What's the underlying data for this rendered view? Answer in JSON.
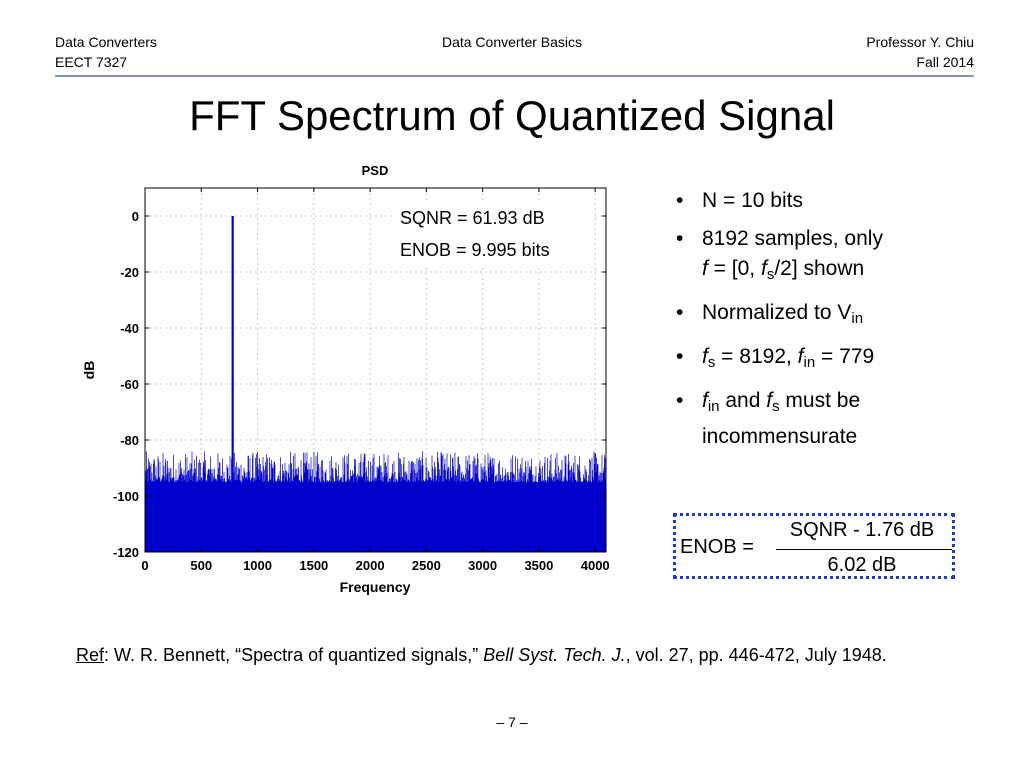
{
  "header": {
    "left_line1": "Data Converters",
    "left_line2": "EECT 7327",
    "center": "Data Converter Basics",
    "right_line1": "Professor Y. Chiu",
    "right_line2": "Fall 2014"
  },
  "title": "FFT Spectrum of Quantized Signal",
  "chart_data": {
    "type": "line",
    "title": "PSD",
    "xlabel": "Frequency",
    "ylabel": "dB",
    "xlim": [
      0,
      4096
    ],
    "ylim": [
      -120,
      10
    ],
    "xticks": [
      0,
      500,
      1000,
      1500,
      2000,
      2500,
      3000,
      3500,
      4000
    ],
    "yticks": [
      0,
      -20,
      -40,
      -60,
      -80,
      -100,
      -120
    ],
    "grid": true,
    "series_color": "#0000cc",
    "noise_floor_db": [
      -95,
      -84
    ],
    "signal_peak": {
      "x": 779,
      "y": 0
    },
    "annotations": [
      "SQNR = 61.93 dB",
      "ENOB = 9.995 bits"
    ]
  },
  "bullets": [
    {
      "text": "N = 10 bits"
    },
    {
      "a": "8192 samples, only",
      "b_f": "f",
      "b_mid": " = [0, ",
      "b_fs": "f",
      "b_s": "s",
      "b_end": "/2] shown"
    },
    {
      "a": "Normalized to V",
      "sub": "in"
    },
    {
      "f1": "f",
      "s1": "s",
      "m1": " = 8192, ",
      "f2": "f",
      "s2": "in",
      "m2": " = 779"
    },
    {
      "f1": "f",
      "s1": "in",
      "m1": " and ",
      "f2": "f",
      "s2": "s",
      "m2": " must be",
      "line2": "incommensurate"
    }
  ],
  "formula": {
    "lhs": "ENOB =",
    "numerator": "SQNR - 1.76 dB",
    "denominator": "6.02 dB"
  },
  "reference": {
    "tag": "Ref",
    "p1": ": W. R. Bennett, “Spectra of quantized signals,” ",
    "journal": "Bell Syst. Tech. J.",
    "p2": ", vol. 27, pp. 446-472, July 1948."
  },
  "page_number": "– 7 –"
}
